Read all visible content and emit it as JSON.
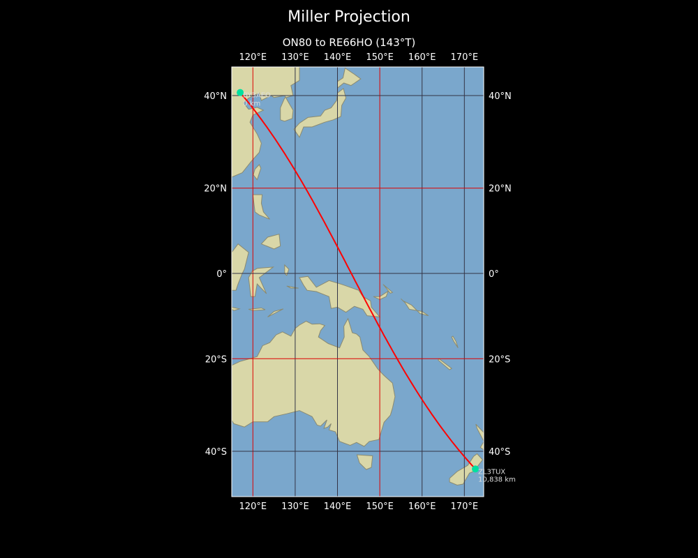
{
  "title": "Miller Projection",
  "subtitle": "ON80 to RE66HO (143°T)",
  "map": {
    "projection": "Miller",
    "extent": {
      "lon": [
        115,
        174.5
      ],
      "lat": [
        -49,
        46
      ]
    },
    "lon_ticks": [
      {
        "v": 120,
        "label": "120°E"
      },
      {
        "v": 130,
        "label": "130°E"
      },
      {
        "v": 140,
        "label": "140°E"
      },
      {
        "v": 150,
        "label": "150°E"
      },
      {
        "v": 160,
        "label": "160°E"
      },
      {
        "v": 170,
        "label": "170°E"
      }
    ],
    "lat_ticks": [
      {
        "v": 40,
        "label": "40°N"
      },
      {
        "v": 20,
        "label": "20°N"
      },
      {
        "v": 0,
        "label": "0°"
      },
      {
        "v": -20,
        "label": "20°S"
      },
      {
        "v": -40,
        "label": "40°S"
      }
    ],
    "route_gridlines_lon": [
      120,
      150
    ],
    "route_gridlines_lat": [
      20,
      -20
    ],
    "colors": {
      "ocean": "#7aa7cc",
      "land": "#d9d7a8",
      "route": "#ff0000",
      "marker": "#00e0a0",
      "grid": "#333344",
      "highlight_grid": "#dd0000"
    },
    "start": {
      "call": "BY3AEO",
      "dist": "0 km",
      "lon": 117,
      "lat": 40.6
    },
    "end": {
      "call": "ZL3TUX",
      "dist": "10,838 km",
      "lon": 172.6,
      "lat": -43.5
    }
  }
}
